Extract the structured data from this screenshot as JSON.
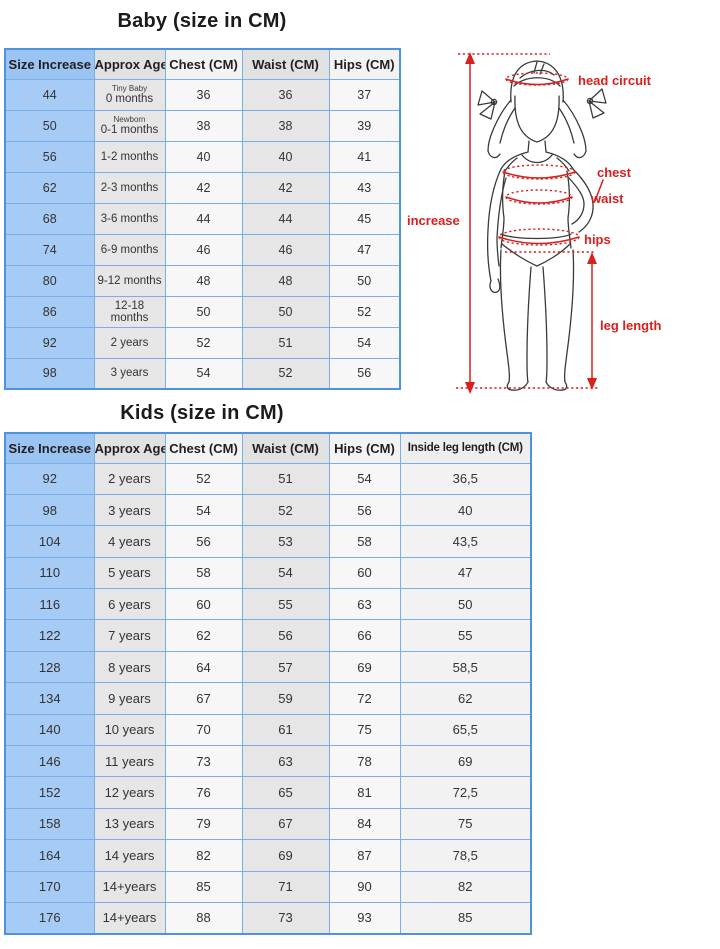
{
  "colors": {
    "column_blue": "#a6cbf4",
    "column_gray": "#e6e6e6",
    "column_light": "#f7f7f7",
    "border_inner": "#79afe8",
    "border_outer": "#4f93dd",
    "label_red": "#d8201f",
    "title_dark": "#1b1b1b"
  },
  "baby_table": {
    "title": "Baby (size in CM)",
    "headers": [
      "Size Increase",
      "Approx Age",
      "Chest (CM)",
      "Waist (CM)",
      "Hips (CM)"
    ],
    "rows": [
      {
        "size": "44",
        "age_sub": "Tiny Baby",
        "age": "0 months",
        "chest": "36",
        "waist": "36",
        "hips": "37"
      },
      {
        "size": "50",
        "age_sub": "Newborn",
        "age": "0-1 months",
        "chest": "38",
        "waist": "38",
        "hips": "39"
      },
      {
        "size": "56",
        "age": "1-2 months",
        "chest": "40",
        "waist": "40",
        "hips": "41"
      },
      {
        "size": "62",
        "age": "2-3 months",
        "chest": "42",
        "waist": "42",
        "hips": "43"
      },
      {
        "size": "68",
        "age": "3-6 months",
        "chest": "44",
        "waist": "44",
        "hips": "45"
      },
      {
        "size": "74",
        "age": "6-9 months",
        "chest": "46",
        "waist": "46",
        "hips": "47"
      },
      {
        "size": "80",
        "age": "9-12 months",
        "chest": "48",
        "waist": "48",
        "hips": "50"
      },
      {
        "size": "86",
        "age": "12-18 months",
        "chest": "50",
        "waist": "50",
        "hips": "52"
      },
      {
        "size": "92",
        "age": "2 years",
        "chest": "52",
        "waist": "51",
        "hips": "54"
      },
      {
        "size": "98",
        "age": "3 years",
        "chest": "54",
        "waist": "52",
        "hips": "56"
      }
    ]
  },
  "kids_table": {
    "title": "Kids (size in CM)",
    "headers": [
      "Size Increase",
      "Approx Age",
      "Chest (CM)",
      "Waist (CM)",
      "Hips (CM)",
      "Inside leg length (CM)"
    ],
    "rows": [
      {
        "size": "92",
        "age": "2 years",
        "chest": "52",
        "waist": "51",
        "hips": "54",
        "leg": "36,5"
      },
      {
        "size": "98",
        "age": "3 years",
        "chest": "54",
        "waist": "52",
        "hips": "56",
        "leg": "40"
      },
      {
        "size": "104",
        "age": "4 years",
        "chest": "56",
        "waist": "53",
        "hips": "58",
        "leg": "43,5"
      },
      {
        "size": "110",
        "age": "5 years",
        "chest": "58",
        "waist": "54",
        "hips": "60",
        "leg": "47"
      },
      {
        "size": "116",
        "age": "6 years",
        "chest": "60",
        "waist": "55",
        "hips": "63",
        "leg": "50"
      },
      {
        "size": "122",
        "age": "7 years",
        "chest": "62",
        "waist": "56",
        "hips": "66",
        "leg": "55"
      },
      {
        "size": "128",
        "age": "8 years",
        "chest": "64",
        "waist": "57",
        "hips": "69",
        "leg": "58,5"
      },
      {
        "size": "134",
        "age": "9 years",
        "chest": "67",
        "waist": "59",
        "hips": "72",
        "leg": "62"
      },
      {
        "size": "140",
        "age": "10 years",
        "chest": "70",
        "waist": "61",
        "hips": "75",
        "leg": "65,5"
      },
      {
        "size": "146",
        "age": "11 years",
        "chest": "73",
        "waist": "63",
        "hips": "78",
        "leg": "69"
      },
      {
        "size": "152",
        "age": "12 years",
        "chest": "76",
        "waist": "65",
        "hips": "81",
        "leg": "72,5"
      },
      {
        "size": "158",
        "age": "13 years",
        "chest": "79",
        "waist": "67",
        "hips": "84",
        "leg": "75"
      },
      {
        "size": "164",
        "age": "14 years",
        "chest": "82",
        "waist": "69",
        "hips": "87",
        "leg": "78,5"
      },
      {
        "size": "170",
        "age": "14+years",
        "chest": "85",
        "waist": "71",
        "hips": "90",
        "leg": "82"
      },
      {
        "size": "176",
        "age": "14+years",
        "chest": "88",
        "waist": "73",
        "hips": "93",
        "leg": "85"
      }
    ]
  },
  "diagram": {
    "labels": {
      "head": "head circuit",
      "chest": "chest",
      "waist": "waist",
      "increase": "increase",
      "hips": "hips",
      "leg": "leg length"
    }
  }
}
